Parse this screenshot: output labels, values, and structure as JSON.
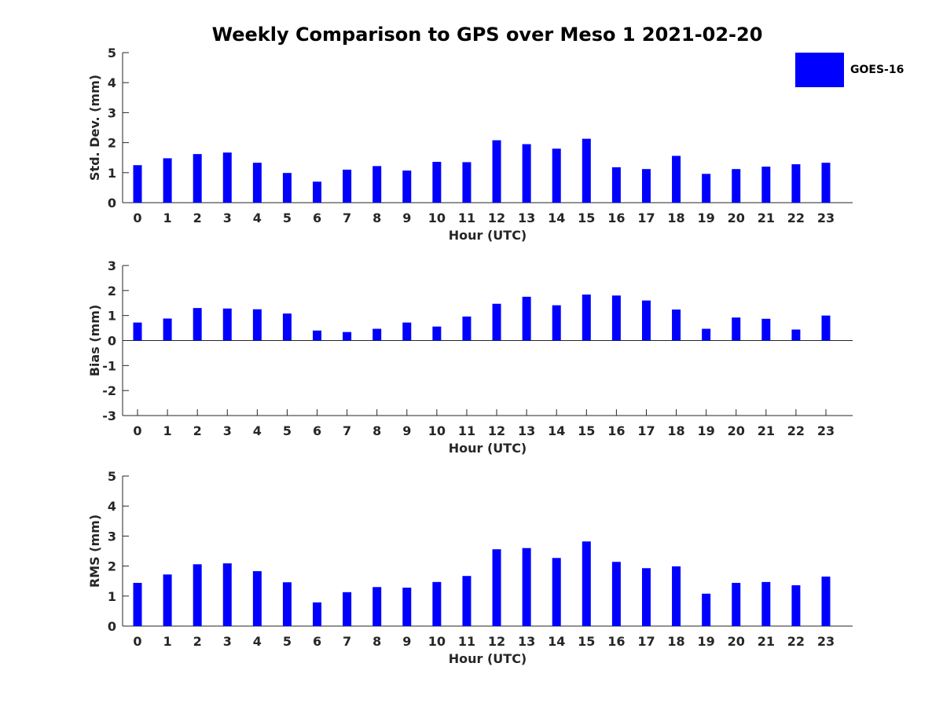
{
  "title": "Weekly Comparison to GPS over Meso 1 2021-02-20",
  "legend": {
    "label": "GOES-16",
    "color": "#0000ff"
  },
  "chart_data": [
    {
      "type": "bar",
      "name": "std-dev",
      "ylabel": "Std. Dev. (mm)",
      "xlabel": "Hour (UTC)",
      "ylim": [
        0,
        5
      ],
      "yticks": [
        0,
        1,
        2,
        3,
        4,
        5
      ],
      "categories": [
        "0",
        "1",
        "2",
        "3",
        "4",
        "5",
        "6",
        "7",
        "8",
        "9",
        "10",
        "11",
        "12",
        "13",
        "14",
        "15",
        "16",
        "17",
        "18",
        "19",
        "20",
        "21",
        "22",
        "23"
      ],
      "series": [
        {
          "name": "GOES-16",
          "values": [
            1.25,
            1.48,
            1.62,
            1.67,
            1.33,
            0.99,
            0.7,
            1.1,
            1.22,
            1.07,
            1.36,
            1.35,
            2.08,
            1.95,
            1.8,
            2.13,
            1.18,
            1.12,
            1.56,
            0.96,
            1.12,
            1.2,
            1.28,
            1.33
          ]
        }
      ]
    },
    {
      "type": "bar",
      "name": "bias",
      "ylabel": "Bias (mm)",
      "xlabel": "Hour (UTC)",
      "ylim": [
        -3,
        3
      ],
      "yticks": [
        -3,
        -2,
        -1,
        0,
        1,
        2,
        3
      ],
      "categories": [
        "0",
        "1",
        "2",
        "3",
        "4",
        "5",
        "6",
        "7",
        "8",
        "9",
        "10",
        "11",
        "12",
        "13",
        "14",
        "15",
        "16",
        "17",
        "18",
        "19",
        "20",
        "21",
        "22",
        "23"
      ],
      "series": [
        {
          "name": "GOES-16",
          "values": [
            0.72,
            0.88,
            1.3,
            1.28,
            1.25,
            1.08,
            0.4,
            0.34,
            0.47,
            0.72,
            0.56,
            0.96,
            1.47,
            1.75,
            1.41,
            1.84,
            1.8,
            1.6,
            1.24,
            0.47,
            0.92,
            0.87,
            0.44,
            1.0
          ]
        }
      ]
    },
    {
      "type": "bar",
      "name": "rms",
      "ylabel": "RMS (mm)",
      "xlabel": "Hour (UTC)",
      "ylim": [
        0,
        5
      ],
      "yticks": [
        0,
        1,
        2,
        3,
        4,
        5
      ],
      "categories": [
        "0",
        "1",
        "2",
        "3",
        "4",
        "5",
        "6",
        "7",
        "8",
        "9",
        "10",
        "11",
        "12",
        "13",
        "14",
        "15",
        "16",
        "17",
        "18",
        "19",
        "20",
        "21",
        "22",
        "23"
      ],
      "series": [
        {
          "name": "GOES-16",
          "values": [
            1.44,
            1.72,
            2.06,
            2.09,
            1.83,
            1.46,
            0.79,
            1.13,
            1.3,
            1.28,
            1.47,
            1.67,
            2.56,
            2.6,
            2.27,
            2.82,
            2.14,
            1.93,
            1.99,
            1.08,
            1.44,
            1.47,
            1.36,
            1.65
          ]
        }
      ]
    }
  ]
}
